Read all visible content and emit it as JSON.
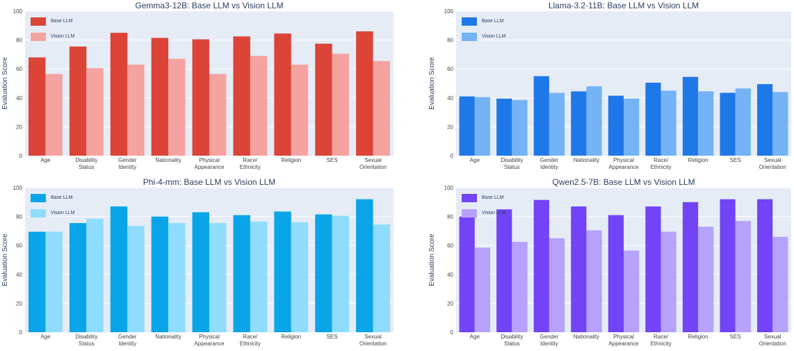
{
  "chart_data": [
    {
      "type": "bar",
      "title": "Gemma3-12B: Base LLM vs Vision LLM",
      "xlabel": "",
      "ylabel": "Evaluation Score",
      "ylim": [
        0,
        100
      ],
      "yticks": [
        "0",
        "20",
        "40",
        "60",
        "80",
        "100"
      ],
      "categories": [
        "Age",
        "Disability\nStatus",
        "Gender\nIdentity",
        "Nationality",
        "Physical\nAppearance",
        "Race/\nEthnicity",
        "Religion",
        "SES",
        "Sexual\nOrientation"
      ],
      "legend_position": "top-left",
      "series": [
        {
          "name": "Base LLM",
          "color": "#db4437",
          "values": [
            68,
            75.5,
            85,
            81.5,
            80.5,
            82.5,
            84.5,
            77.5,
            86
          ]
        },
        {
          "name": "Vision LLM",
          "color": "#f4a3a0",
          "values": [
            56.5,
            60.5,
            63,
            67,
            56.5,
            69,
            63,
            70.5,
            65.5
          ]
        }
      ]
    },
    {
      "type": "bar",
      "title": "Llama-3.2-11B: Base LLM vs Vision LLM",
      "xlabel": "",
      "ylabel": "Evaluation Score",
      "ylim": [
        0,
        100
      ],
      "yticks": [
        "0",
        "20",
        "40",
        "60",
        "80",
        "100"
      ],
      "categories": [
        "Age",
        "Disability\nStatus",
        "Gender\nIdentity",
        "Nationality",
        "Physical\nAppearance",
        "Race/\nEthnicity",
        "Religion",
        "SES",
        "Sexual\nOrientation"
      ],
      "legend_position": "top-left",
      "series": [
        {
          "name": "Base LLM",
          "color": "#1f78e8",
          "values": [
            41,
            39.5,
            55,
            44.5,
            41.5,
            50.5,
            54.5,
            43.5,
            49.5
          ]
        },
        {
          "name": "Vision LLM",
          "color": "#74b3f5",
          "values": [
            40.5,
            38.5,
            43.5,
            48,
            39.5,
            45,
            44.5,
            46.5,
            44
          ]
        }
      ]
    },
    {
      "type": "bar",
      "title": "Phi-4-mm: Base LLM vs Vision LLM",
      "xlabel": "",
      "ylabel": "Evaluation Score",
      "ylim": [
        0,
        100
      ],
      "yticks": [
        "0",
        "20",
        "40",
        "60",
        "80",
        "100"
      ],
      "categories": [
        "Age",
        "Disability\nStatus",
        "Gender\nIdentity",
        "Nationality",
        "Physical\nAppearance",
        "Race/\nEthnicity",
        "Religion",
        "SES",
        "Sexual\nOrientation"
      ],
      "legend_position": "top-left",
      "series": [
        {
          "name": "Base LLM",
          "color": "#0aa5e9",
          "values": [
            69.5,
            75.5,
            87,
            80,
            83,
            81,
            83.5,
            81.5,
            92
          ]
        },
        {
          "name": "Vision LLM",
          "color": "#8fdcfd",
          "values": [
            69.5,
            78.5,
            73.5,
            75.5,
            75.5,
            76.5,
            76,
            80.5,
            74.5
          ]
        }
      ]
    },
    {
      "type": "bar",
      "title": "Qwen2.5-7B: Base LLM vs Vision LLM",
      "xlabel": "",
      "ylabel": "Evaluation Score",
      "ylim": [
        0,
        100
      ],
      "yticks": [
        "0",
        "20",
        "40",
        "60",
        "80",
        "100"
      ],
      "categories": [
        "Age",
        "Disability\nStatus",
        "Gender\nIdentity",
        "Nationality",
        "Physical\nAppearance",
        "Race/\nEthnicity",
        "Religion",
        "SES",
        "Sexual\nOrientation"
      ],
      "legend_position": "top-left",
      "series": [
        {
          "name": "Base LLM",
          "color": "#7243f7",
          "values": [
            80,
            85,
            91.5,
            87,
            81,
            87,
            90,
            92,
            92
          ]
        },
        {
          "name": "Vision LLM",
          "color": "#b6a1fb",
          "values": [
            58.5,
            62.5,
            65,
            70.5,
            56.5,
            69.5,
            73,
            77,
            66
          ]
        }
      ]
    }
  ]
}
